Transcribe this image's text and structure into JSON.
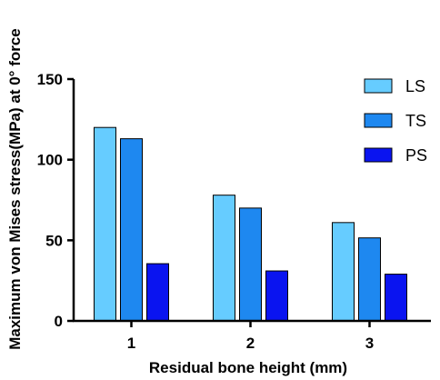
{
  "chart_data": {
    "type": "bar",
    "xlabel": "Residual bone height (mm)",
    "ylabel": "Maximum von Mises stress(MPa) at 0° force",
    "categories": [
      "1",
      "2",
      "3"
    ],
    "ylim": [
      0,
      150
    ],
    "yticks": [
      "0",
      "50",
      "100",
      "150"
    ],
    "grid": false,
    "legend_position": "top-right",
    "series": [
      {
        "name": "LS",
        "color": "#66CCFF",
        "values": [
          120,
          78,
          61
        ]
      },
      {
        "name": "TS",
        "color": "#1E88F0",
        "values": [
          113,
          70,
          51.5
        ]
      },
      {
        "name": "PS",
        "color": "#0A14F0",
        "values": [
          35.5,
          31,
          29
        ]
      }
    ]
  }
}
